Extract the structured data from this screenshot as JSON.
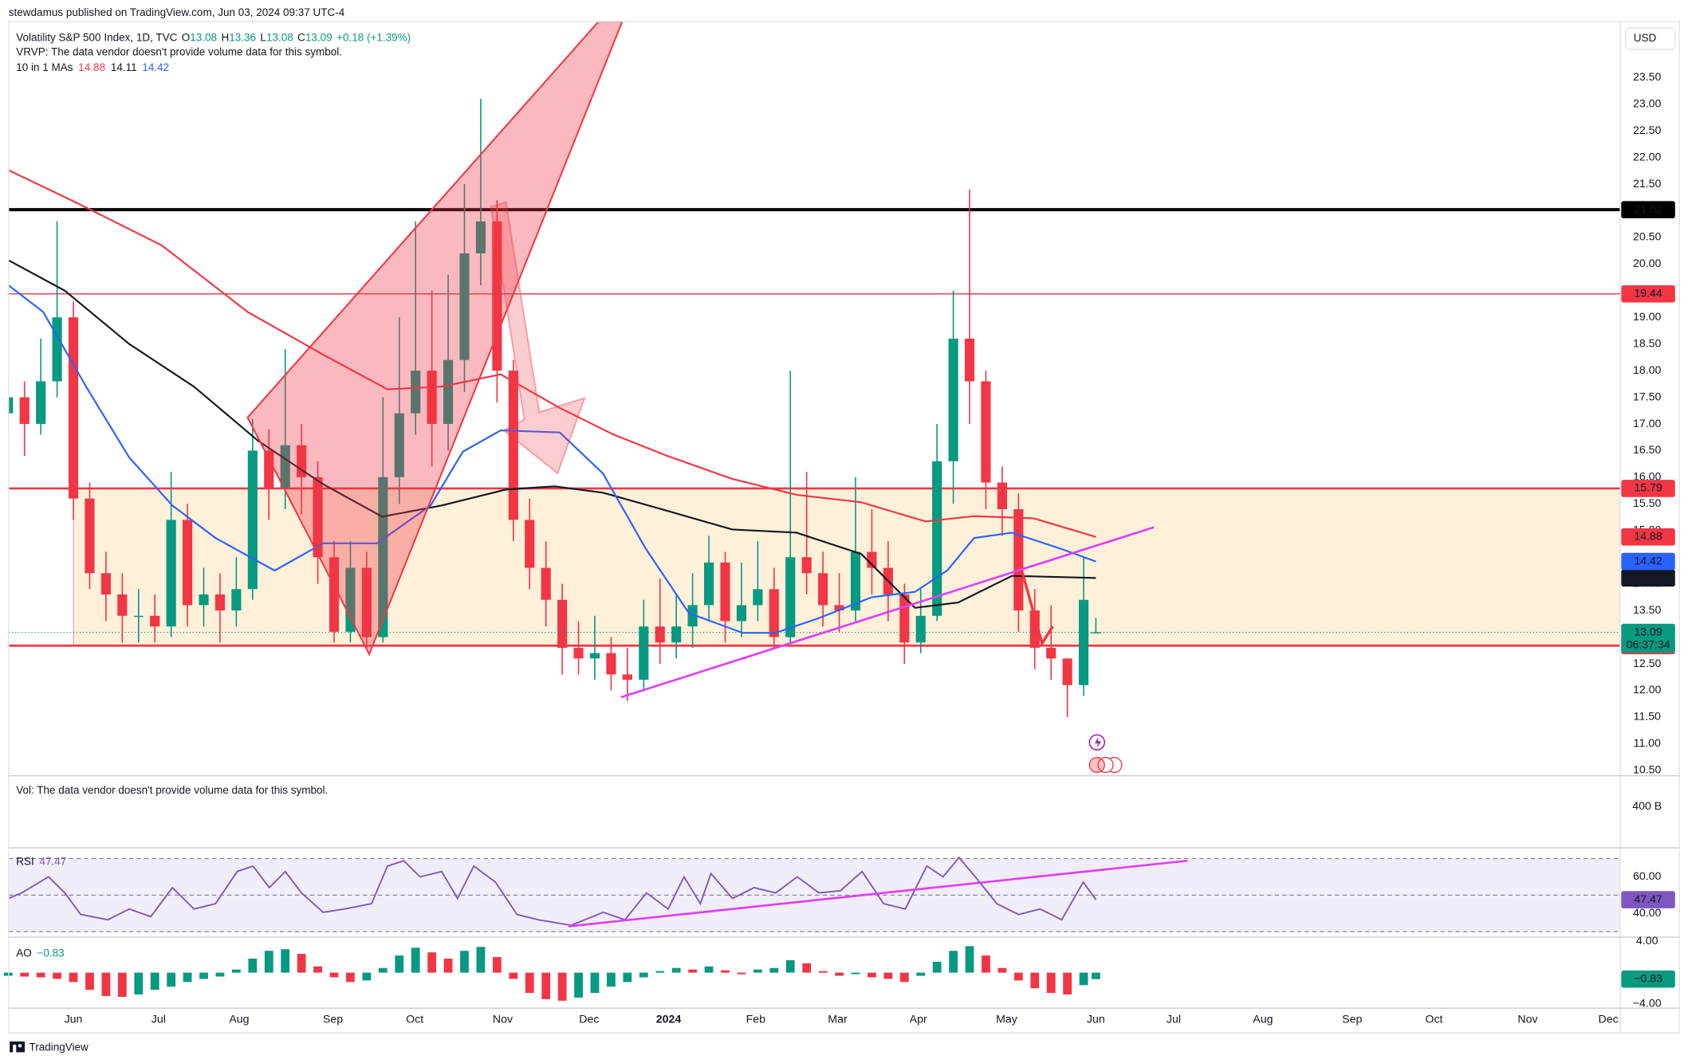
{
  "header": "stewdamus published on TradingView.com, Jun 03, 2024 09:37 UTC-4",
  "currency": "USD",
  "footer": "TradingView",
  "chart_data": [
    {
      "type": "candlestick",
      "title": "Volatility S&P 500 Index, 1D, TVC",
      "ohlc_legend": [
        {
          "label": "O",
          "value": 13.08
        },
        {
          "label": "H",
          "value": 13.36
        },
        {
          "label": "L",
          "value": 13.08
        },
        {
          "label": "C",
          "value": 13.09
        }
      ],
      "change": "+0.18 (+1.39%)",
      "vrvp_note": "VRVP: The data vendor doesn't provide volume data for this symbol.",
      "ma_label": "10 in 1 MAs",
      "xlim": [
        -15.9,
        379.7
      ],
      "xticks": [
        {
          "value": 0,
          "label": "Jun"
        },
        {
          "value": 20.9,
          "label": "Jul"
        },
        {
          "value": 40.7,
          "label": "Aug"
        },
        {
          "value": 63.7,
          "label": "Sep"
        },
        {
          "value": 83.8,
          "label": "Oct"
        },
        {
          "value": 105.4,
          "label": "Nov"
        },
        {
          "value": 126.6,
          "label": "Dec"
        },
        {
          "value": 146.1,
          "label": "2024"
        },
        {
          "value": 167.5,
          "label": "Feb"
        },
        {
          "value": 187.6,
          "label": "Mar"
        },
        {
          "value": 207.4,
          "label": "Apr"
        },
        {
          "value": 229.1,
          "label": "May"
        },
        {
          "value": 251,
          "label": "Jun"
        },
        {
          "value": 270.1,
          "label": "Jul"
        },
        {
          "value": 292,
          "label": "Aug"
        },
        {
          "value": 313.9,
          "label": "Sep"
        },
        {
          "value": 334,
          "label": "Oct"
        },
        {
          "value": 357,
          "label": "Nov"
        },
        {
          "value": 376.8,
          "label": "Dec"
        }
      ],
      "ylim": [
        10.42,
        24.55
      ],
      "yticks": [
        {
          "value": 10.5,
          "label": "10.50"
        },
        {
          "value": 11,
          "label": "11.00"
        },
        {
          "value": 11.5,
          "label": "11.50"
        },
        {
          "value": 12,
          "label": "12.00"
        },
        {
          "value": 12.5,
          "label": "12.50"
        },
        {
          "value": 13.5,
          "label": "13.50"
        },
        {
          "value": 14,
          "label": "14.00"
        },
        {
          "value": 15,
          "label": "15.00"
        },
        {
          "value": 15.5,
          "label": "15.50"
        },
        {
          "value": 16,
          "label": "16.00"
        },
        {
          "value": 16.5,
          "label": "16.50"
        },
        {
          "value": 17,
          "label": "17.00"
        },
        {
          "value": 17.5,
          "label": "17.50"
        },
        {
          "value": 18,
          "label": "18.00"
        },
        {
          "value": 18.5,
          "label": "18.50"
        },
        {
          "value": 19,
          "label": "19.00"
        },
        {
          "value": 20,
          "label": "20.00"
        },
        {
          "value": 20.5,
          "label": "20.50"
        },
        {
          "value": 21.5,
          "label": "21.50"
        },
        {
          "value": 22,
          "label": "22.00"
        },
        {
          "value": 22.5,
          "label": "22.50"
        },
        {
          "value": 23,
          "label": "23.00"
        },
        {
          "value": 23.5,
          "label": "23.50"
        }
      ],
      "colors": {
        "up": "#089981",
        "down": "#f23645"
      },
      "candles": [
        [
          -16,
          17.2,
          17.9,
          16.9,
          17.5
        ],
        [
          -12,
          17.5,
          17.8,
          16.4,
          17.0
        ],
        [
          -8,
          17.0,
          18.6,
          16.8,
          17.8
        ],
        [
          -4,
          17.8,
          20.8,
          17.5,
          19.0
        ],
        [
          0,
          19.0,
          19.3,
          15.2,
          15.6
        ],
        [
          4,
          15.6,
          15.9,
          13.9,
          14.2
        ],
        [
          8,
          14.2,
          14.6,
          13.3,
          13.8
        ],
        [
          12,
          13.8,
          14.2,
          12.9,
          13.4
        ],
        [
          16,
          13.4,
          13.9,
          12.9,
          13.4
        ],
        [
          20,
          13.4,
          13.8,
          12.9,
          13.2
        ],
        [
          24,
          13.2,
          16.1,
          13.0,
          15.2
        ],
        [
          28,
          15.2,
          15.5,
          13.2,
          13.6
        ],
        [
          32,
          13.6,
          14.3,
          13.2,
          13.8
        ],
        [
          36,
          13.8,
          14.2,
          12.9,
          13.5
        ],
        [
          40,
          13.5,
          14.5,
          13.2,
          13.9
        ],
        [
          44,
          13.9,
          17.1,
          13.7,
          16.5
        ],
        [
          48,
          16.5,
          16.9,
          15.2,
          15.8
        ],
        [
          52,
          15.8,
          18.4,
          15.4,
          16.6
        ],
        [
          56,
          16.6,
          17.0,
          15.3,
          16.0
        ],
        [
          60,
          16.0,
          16.3,
          14.0,
          14.5
        ],
        [
          64,
          14.5,
          14.8,
          12.9,
          13.1
        ],
        [
          68,
          13.1,
          14.8,
          12.9,
          14.3
        ],
        [
          72,
          14.3,
          14.6,
          12.8,
          13.0
        ],
        [
          76,
          13.0,
          17.5,
          12.9,
          16.0
        ],
        [
          80,
          16.0,
          19.0,
          15.5,
          17.2
        ],
        [
          84,
          17.2,
          20.8,
          16.8,
          18.0
        ],
        [
          88,
          18.0,
          19.5,
          16.2,
          17.0
        ],
        [
          92,
          17.0,
          19.8,
          16.5,
          18.2
        ],
        [
          96,
          18.2,
          21.5,
          17.6,
          20.2
        ],
        [
          100,
          20.2,
          23.1,
          19.6,
          20.8
        ],
        [
          104,
          20.8,
          21.2,
          17.4,
          18.0
        ],
        [
          108,
          18.0,
          18.2,
          14.8,
          15.2
        ],
        [
          112,
          15.2,
          15.6,
          13.9,
          14.3
        ],
        [
          116,
          14.3,
          14.8,
          13.2,
          13.7
        ],
        [
          120,
          13.7,
          14.0,
          12.3,
          12.8
        ],
        [
          124,
          12.8,
          13.3,
          12.3,
          12.6
        ],
        [
          128,
          12.6,
          13.4,
          12.2,
          12.7
        ],
        [
          132,
          12.7,
          13.0,
          12.0,
          12.3
        ],
        [
          136,
          12.3,
          12.8,
          11.8,
          12.2
        ],
        [
          140,
          12.2,
          13.7,
          12.0,
          13.2
        ],
        [
          144,
          13.2,
          14.1,
          12.5,
          12.9
        ],
        [
          148,
          12.9,
          13.8,
          12.6,
          13.2
        ],
        [
          152,
          13.2,
          14.2,
          12.8,
          13.6
        ],
        [
          156,
          13.6,
          14.9,
          13.3,
          14.4
        ],
        [
          160,
          14.4,
          14.6,
          12.9,
          13.3
        ],
        [
          164,
          13.3,
          14.4,
          13.0,
          13.6
        ],
        [
          168,
          13.6,
          14.8,
          13.3,
          13.9
        ],
        [
          172,
          13.9,
          14.3,
          12.8,
          13.0
        ],
        [
          176,
          13.0,
          18.0,
          12.9,
          14.5
        ],
        [
          180,
          14.5,
          16.1,
          13.8,
          14.2
        ],
        [
          184,
          14.2,
          14.6,
          13.2,
          13.6
        ],
        [
          188,
          13.6,
          14.2,
          13.1,
          13.5
        ],
        [
          192,
          13.5,
          16.0,
          13.3,
          14.6
        ],
        [
          196,
          14.6,
          15.4,
          13.8,
          14.3
        ],
        [
          200,
          14.3,
          14.8,
          13.3,
          13.8
        ],
        [
          204,
          13.8,
          14.0,
          12.5,
          12.9
        ],
        [
          208,
          12.9,
          13.9,
          12.7,
          13.4
        ],
        [
          212,
          13.4,
          17.0,
          13.3,
          16.3
        ],
        [
          216,
          16.3,
          19.5,
          15.5,
          18.6
        ],
        [
          220,
          18.6,
          21.4,
          17.0,
          17.8
        ],
        [
          224,
          17.8,
          18.0,
          15.4,
          15.9
        ],
        [
          228,
          15.9,
          16.2,
          14.9,
          15.4
        ],
        [
          232,
          15.4,
          15.7,
          13.1,
          13.5
        ],
        [
          236,
          13.5,
          13.9,
          12.4,
          12.8
        ],
        [
          240,
          12.8,
          13.6,
          12.2,
          12.6
        ],
        [
          244,
          12.6,
          12.6,
          11.5,
          12.1
        ],
        [
          248,
          12.1,
          14.5,
          11.9,
          13.7
        ],
        [
          251,
          13.08,
          13.36,
          13.08,
          13.09
        ]
      ],
      "moving_averages": [
        {
          "color": "#f23645",
          "x": [
            -15.9,
            0.5,
            21.7,
            42.8,
            61.3,
            77.1,
            90.4,
            104.9,
            119.4,
            132.6,
            145.8,
            161.7,
            177.5,
            193.4,
            209.2,
            221.1,
            235.7,
            251
          ],
          "values": [
            21.76,
            21.16,
            20.35,
            19.1,
            18.3,
            17.65,
            17.7,
            17.93,
            17.3,
            16.8,
            16.4,
            15.97,
            15.67,
            15.53,
            15.17,
            15.27,
            15.23,
            14.88
          ]
        },
        {
          "color": "#131722",
          "x": [
            -15.9,
            -2.1,
            13.7,
            29.6,
            45.4,
            61.3,
            75.8,
            90.4,
            106.2,
            118.1,
            130,
            145.8,
            161.7,
            177.5,
            193.4,
            206.6,
            217.2,
            230.4,
            251
          ],
          "values": [
            20.07,
            19.5,
            18.5,
            17.7,
            16.68,
            15.87,
            15.26,
            15.47,
            15.77,
            15.83,
            15.71,
            15.37,
            15.02,
            14.96,
            14.56,
            13.55,
            13.65,
            14.15,
            14.11
          ]
        },
        {
          "color": "#2962ff",
          "x": [
            -15.9,
            -7.4,
            3.2,
            13.7,
            24.3,
            34.9,
            49.4,
            61.3,
            74.5,
            87.7,
            95.6,
            104.9,
            119.4,
            130,
            140.5,
            151.1,
            164.3,
            172.3,
            182.8,
            196,
            206.6,
            214.5,
            221.1,
            230.4,
            242.3,
            251
          ],
          "values": [
            19.6,
            19.1,
            17.69,
            16.37,
            15.47,
            14.86,
            14.25,
            14.76,
            14.76,
            15.47,
            16.48,
            16.88,
            16.84,
            16.07,
            14.66,
            13.45,
            13.08,
            13.08,
            13.35,
            13.75,
            13.85,
            14.25,
            14.86,
            14.96,
            14.66,
            14.42
          ]
        }
      ],
      "levels": [
        {
          "value": 21.02,
          "color": "#000000",
          "width": 3
        },
        {
          "value": 19.44,
          "color": "#f23645",
          "width": 1
        },
        {
          "value": 15.79,
          "color": "#f23645",
          "width": 2,
          "zone": true
        },
        {
          "value": 12.84,
          "color": "#f23645",
          "width": 2,
          "zone": true
        }
      ],
      "zone_color": "#fff0da",
      "last_price": {
        "value": 13.09,
        "countdown": "06:37:34",
        "color": "#089981"
      }
    },
    {
      "type": "volume",
      "note": "Vol: The data vendor doesn't provide volume data for this symbol.",
      "ylim": [
        0,
        700000000000
      ],
      "yticks": [
        {
          "value": 400000000000,
          "label": "400 B"
        }
      ]
    },
    {
      "type": "line",
      "title": "RSI",
      "color": "#7e57c2",
      "ylim": [
        27.6,
        74.7
      ],
      "yticks": [
        {
          "value": 60,
          "label": "60.00"
        },
        {
          "value": 40,
          "label": "40.00"
        }
      ],
      "levels": [
        70,
        50,
        30
      ],
      "x": [
        -15.9,
        -12.7,
        -6.1,
        -2.1,
        1.8,
        8.5,
        13.7,
        19,
        24.3,
        29.6,
        34.9,
        40.2,
        44.1,
        48.1,
        52,
        56,
        61.3,
        66.6,
        73.2,
        77.1,
        81.1,
        85.1,
        90.4,
        94.3,
        98.3,
        103.6,
        108.9,
        114.2,
        122.2,
        130.1,
        135.4,
        140.7,
        146,
        149.9,
        153.9,
        156.5,
        161.8,
        167.1,
        172.4,
        177.7,
        183,
        188.3,
        193.6,
        198.9,
        204.2,
        209.5,
        213.5,
        217.4,
        221.4,
        226.7,
        232,
        237.3,
        242.6,
        247.9,
        251
      ],
      "values": [
        48.2,
        51.2,
        60,
        51.2,
        39.4,
        36.5,
        42.4,
        38.2,
        54.1,
        42.4,
        45.3,
        62.9,
        65.9,
        54.1,
        62.9,
        51.2,
        40.6,
        42.4,
        45.3,
        65.9,
        68.8,
        60,
        62.9,
        48.2,
        65.9,
        57.1,
        39.4,
        36.5,
        33.5,
        40.6,
        36.5,
        51.2,
        42.4,
        60,
        45.3,
        61.8,
        48.2,
        54.1,
        51.2,
        60,
        51.2,
        52.4,
        62.9,
        45.3,
        42.4,
        65.9,
        60,
        70.6,
        60,
        45.3,
        39.4,
        42.4,
        36.5,
        57.1,
        47.47
      ]
    },
    {
      "type": "histogram",
      "title": "AO",
      "colors": {
        "up": "#089981",
        "down": "#f23645"
      },
      "ylim": [
        -4.55,
        4.28
      ],
      "yticks": [
        {
          "value": 4,
          "label": "4.00"
        },
        {
          "value": -4,
          "label": "−4.00"
        }
      ],
      "x": [
        -16,
        -12,
        -8,
        -4,
        0,
        4,
        8,
        12,
        16,
        20,
        24,
        28,
        32,
        36,
        40,
        44,
        48,
        52,
        56,
        60,
        64,
        68,
        72,
        76,
        80,
        84,
        88,
        92,
        96,
        100,
        104,
        108,
        112,
        116,
        120,
        124,
        128,
        132,
        136,
        140,
        144,
        148,
        152,
        156,
        160,
        164,
        168,
        172,
        176,
        180,
        184,
        188,
        192,
        196,
        200,
        204,
        208,
        212,
        216,
        220,
        224,
        228,
        232,
        236,
        240,
        244,
        248,
        251
      ],
      "values": [
        -0.4,
        -0.5,
        -0.6,
        -0.8,
        -1.2,
        -2.2,
        -3.0,
        -3.1,
        -2.8,
        -2.2,
        -1.8,
        -1.2,
        -0.8,
        -0.5,
        0.4,
        1.8,
        2.8,
        3.0,
        2.4,
        0.8,
        -0.6,
        -1.2,
        -1.0,
        0.6,
        2.2,
        3.2,
        2.6,
        1.8,
        2.8,
        3.3,
        2.0,
        -0.8,
        -2.6,
        -3.4,
        -3.6,
        -3.2,
        -2.6,
        -1.8,
        -1.2,
        -0.6,
        0.2,
        0.6,
        0.4,
        0.8,
        0.3,
        -0.2,
        0.4,
        0.6,
        1.6,
        1.2,
        0.2,
        -0.4,
        -0.2,
        -0.6,
        -0.8,
        -1.2,
        -0.4,
        1.4,
        2.8,
        3.4,
        2.2,
        0.6,
        -1.0,
        -2.0,
        -2.6,
        -2.8,
        -1.6,
        -0.83
      ],
      "last_label": "−0.83"
    }
  ]
}
